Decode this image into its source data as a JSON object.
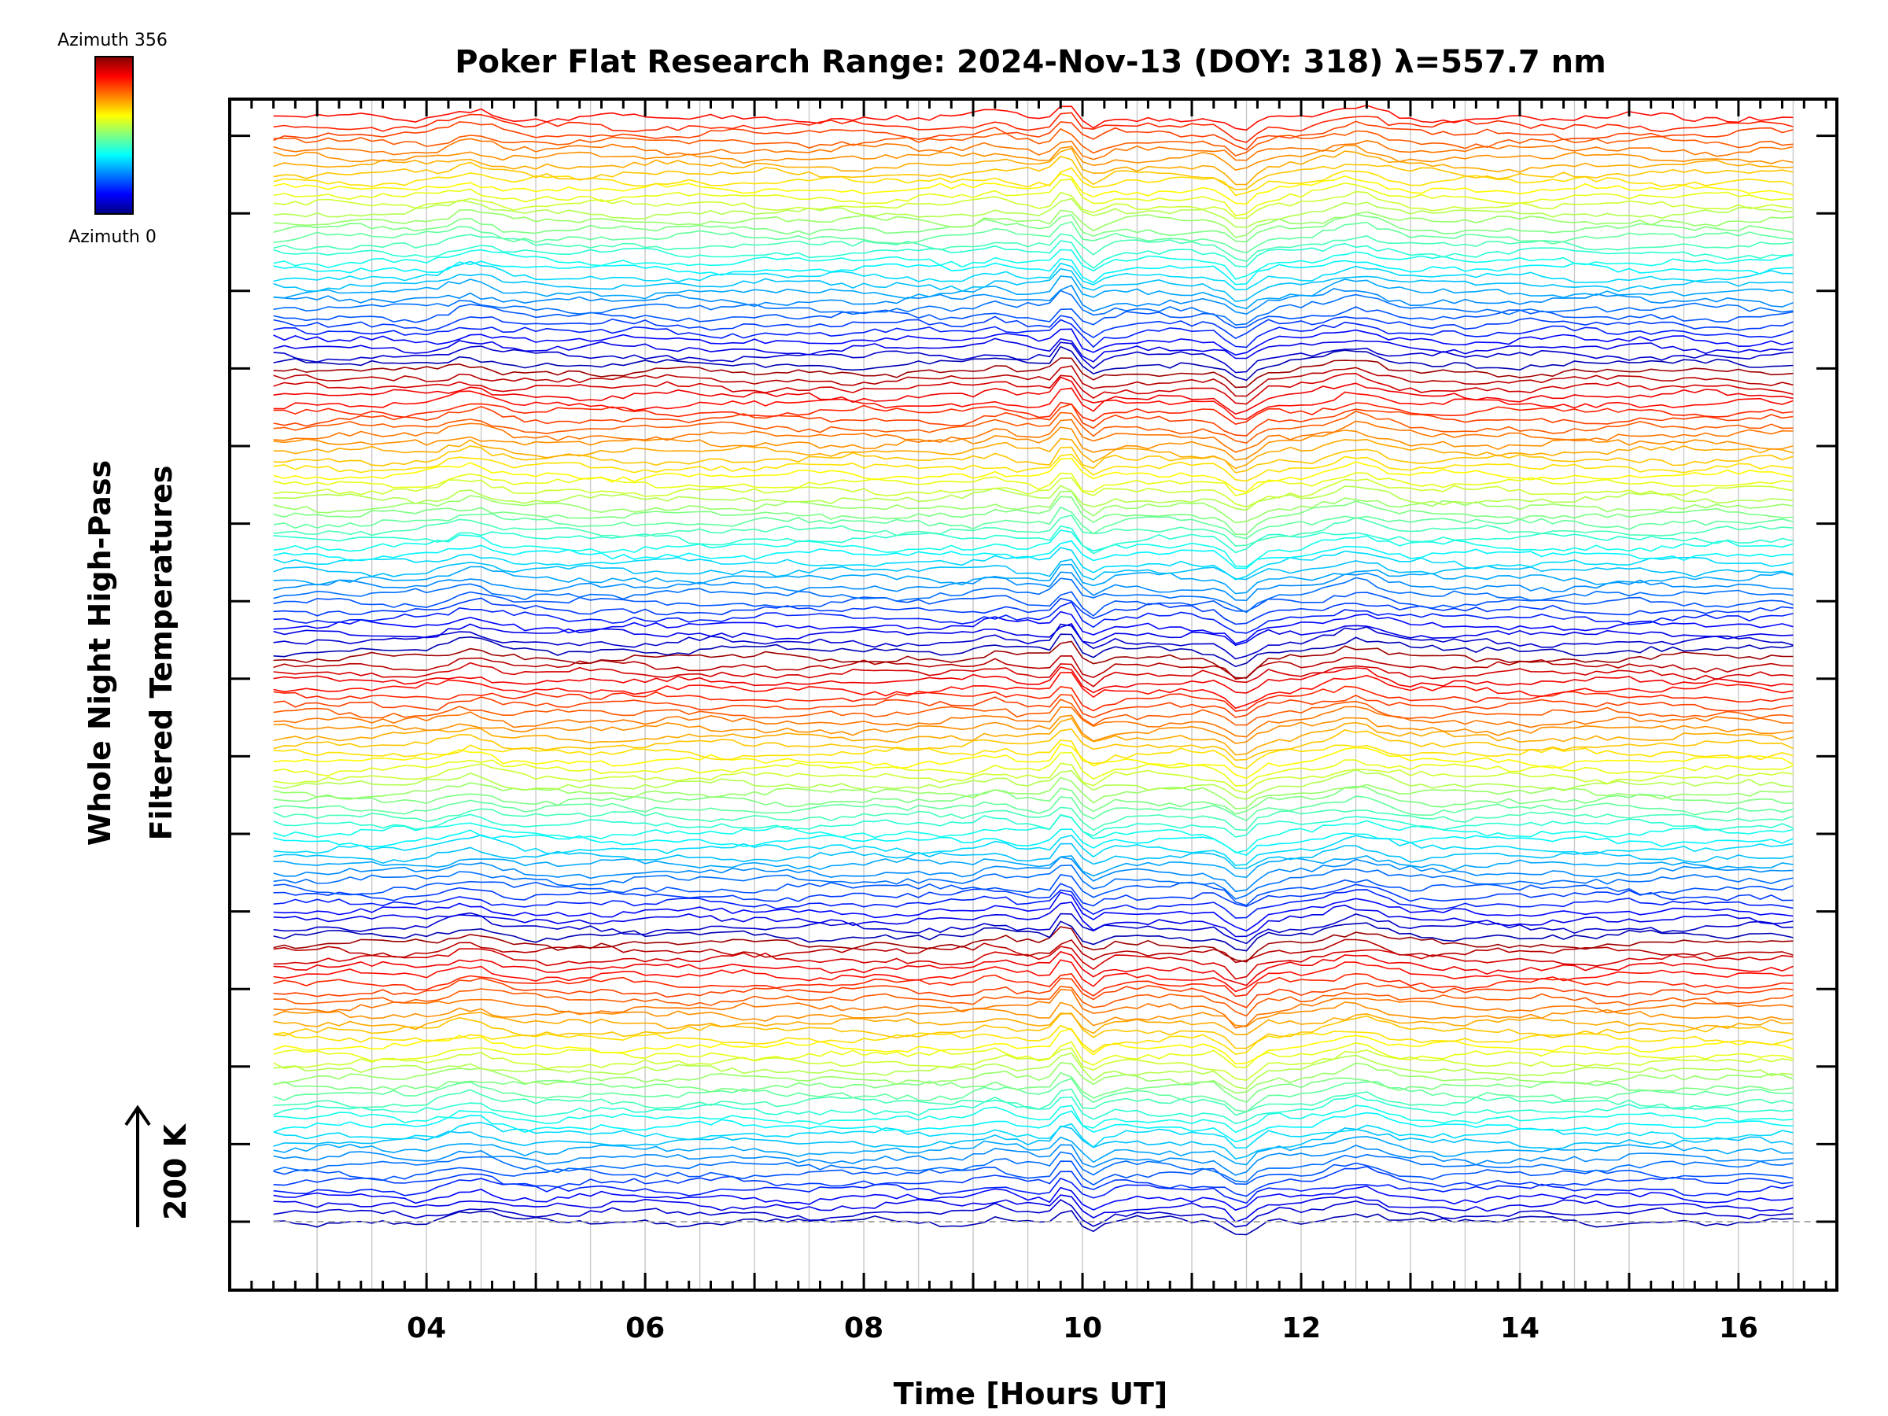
{
  "chart_data": {
    "type": "line",
    "title": "Poker Flat Research Range: 2024-Nov-13 (DOY: 318) λ=557.7 nm",
    "xlabel": "Time [Hours UT]",
    "ylabel_line1": "Whole Night High-Pass",
    "ylabel_line2": "Filtered Temperatures",
    "scale_label": "200 K",
    "xlim": [
      2.2,
      16.9
    ],
    "x_ticks": [
      4,
      6,
      8,
      10,
      12,
      14,
      16
    ],
    "x_tick_labels": [
      "04",
      "06",
      "08",
      "10",
      "12",
      "14",
      "16"
    ],
    "x_range_data": [
      2.6,
      16.5
    ],
    "series_count": 140,
    "series_offset_step_K": 20,
    "grid_x": true,
    "baseline_dashed": true,
    "colorbar": {
      "top_label": "Azimuth 356",
      "bottom_label": "Azimuth 0",
      "min": 0,
      "max": 356,
      "placement": "top-left"
    },
    "colors": {
      "axis": "#000000",
      "grid": "#cccccc",
      "baseline": "#aaaaaa"
    }
  }
}
